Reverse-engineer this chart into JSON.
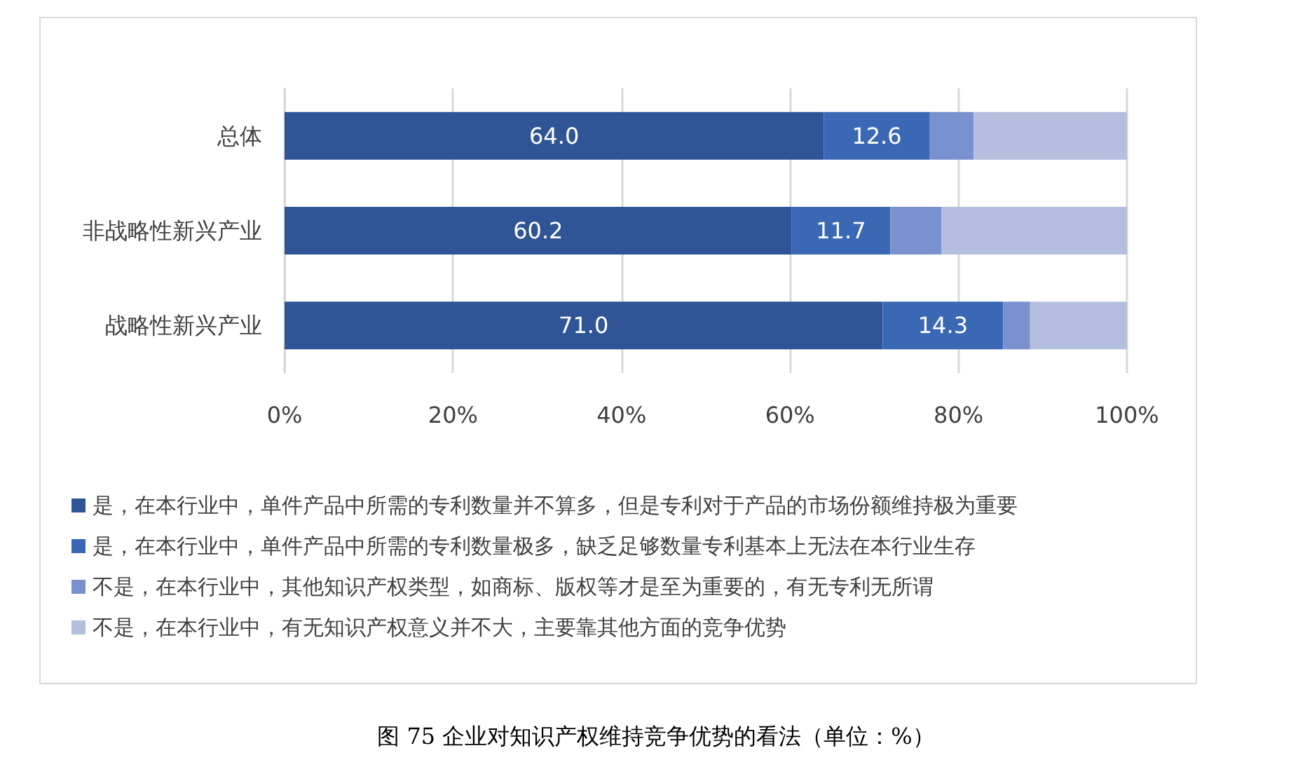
{
  "chart_data": {
    "type": "bar",
    "orientation": "horizontal",
    "stacked": true,
    "title": "图 75 企业对知识产权维持竞争优势的看法（单位：%）",
    "categories": [
      "总体",
      "非战略性新兴产业",
      "战略性新兴产业"
    ],
    "series": [
      {
        "name": "是，在本行业中，单件产品中所需的专利数量并不算多，但是专利对于产品的市场份额维持极为重要",
        "color": "#2f5597",
        "values": [
          64.0,
          60.2,
          71.0
        ],
        "value_labels": [
          "64.0",
          "60.2",
          "71.0"
        ]
      },
      {
        "name": "是，在本行业中，单件产品中所需的专利数量极多，缺乏足够数量专利基本上无法在本行业生存",
        "color": "#3a68b5",
        "values": [
          12.6,
          11.7,
          14.3
        ],
        "value_labels": [
          "12.6",
          "11.7",
          "14.3"
        ]
      },
      {
        "name": "不是，在本行业中，其他知识产权类型，如商标、版权等才是至为重要的，有无专利无所谓",
        "color": "#7a91cf",
        "values": [
          5.2,
          6.1,
          3.2
        ]
      },
      {
        "name": "不是，在本行业中，有无知识产权意义并不大，主要靠其他方面的竞争优势",
        "color": "#b4bfe0",
        "values": [
          18.2,
          22.0,
          11.5
        ]
      }
    ],
    "xlim": [
      0,
      100
    ],
    "xticks": [
      {
        "value": 0,
        "label": "0%"
      },
      {
        "value": 20,
        "label": "20%"
      },
      {
        "value": 40,
        "label": "40%"
      },
      {
        "value": 60,
        "label": "60%"
      },
      {
        "value": 80,
        "label": "80%"
      },
      {
        "value": 100,
        "label": "100%"
      }
    ],
    "grid": "x",
    "legend": "bottom"
  }
}
